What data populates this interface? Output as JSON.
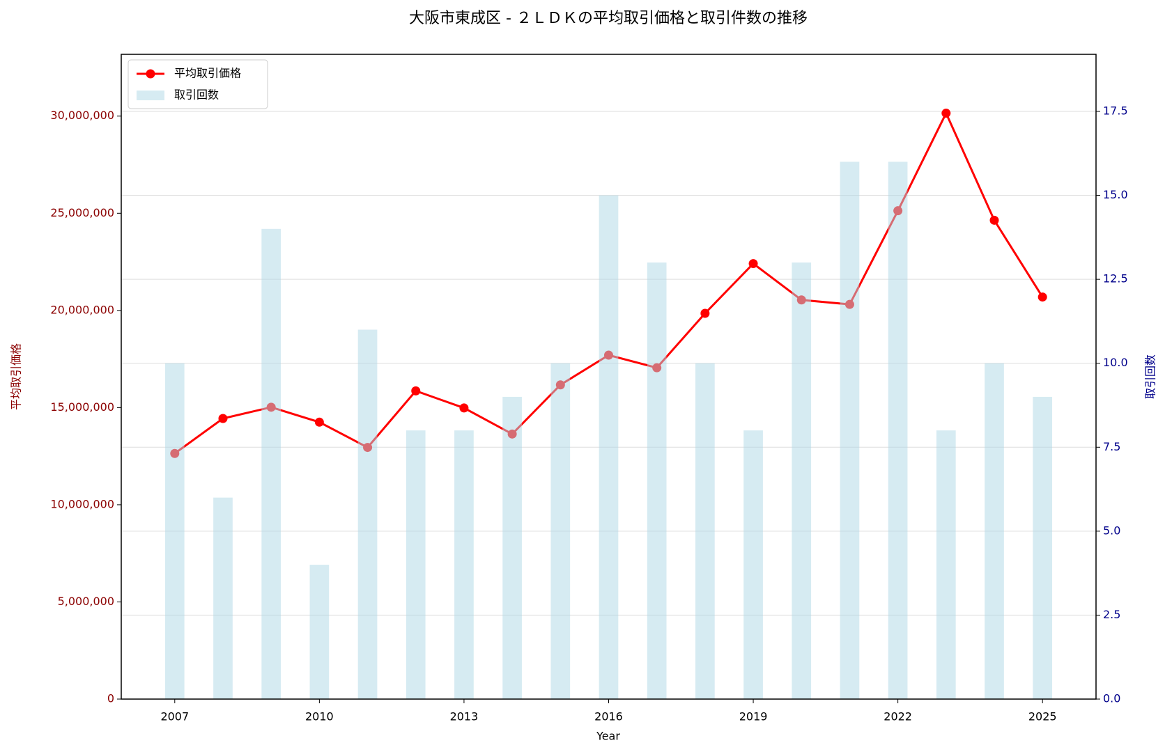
{
  "chart_data": {
    "type": "combo",
    "title": "大阪市東成区 - ２ＬＤＫの平均取引価格と取引件数の推移",
    "x_label": "Year",
    "y_label": "平均取引価格",
    "y2_label": "取引回数",
    "x": [
      2007,
      2008,
      2009,
      2010,
      2011,
      2012,
      2013,
      2014,
      2015,
      2016,
      2017,
      2018,
      2019,
      2020,
      2021,
      2022,
      2023,
      2024,
      2025
    ],
    "series": [
      {
        "name": "平均取引価格",
        "type": "line",
        "color": "#ff0000",
        "values": [
          12640000,
          14440000,
          15020000,
          14250000,
          12950000,
          15860000,
          14980000,
          13640000,
          16170000,
          17700000,
          17050000,
          19850000,
          22410000,
          20540000,
          20310000,
          25130000,
          30150000,
          24640000,
          20690000
        ]
      },
      {
        "name": "取引回数",
        "type": "bar",
        "axis": "y2",
        "color": "#add8e6",
        "values": [
          10,
          6,
          14,
          4,
          11,
          8,
          8,
          9,
          10,
          15,
          13,
          10,
          8,
          13,
          16,
          16,
          8,
          10,
          9
        ]
      }
    ],
    "xlim": [
      2005.89,
      2026.11
    ],
    "xticks": [
      2007,
      2010,
      2013,
      2016,
      2019,
      2022,
      2025
    ],
    "ylim": [
      0,
      33180000
    ],
    "yticks": [
      0,
      {
        "value": 5000000,
        "label": "5,000,000"
      },
      {
        "value": 10000000,
        "label": "10,000,000"
      },
      {
        "value": 15000000,
        "label": "15,000,000"
      },
      {
        "value": 20000000,
        "label": "20,000,000"
      },
      {
        "value": 25000000,
        "label": "25,000,000"
      },
      {
        "value": 30000000,
        "label": "30,000,000"
      }
    ],
    "y2lim": [
      0,
      19.2
    ],
    "y2ticks": [
      {
        "value": 0,
        "label": "0.0"
      },
      2.5,
      {
        "value": 5,
        "label": "5.0"
      },
      7.5,
      {
        "value": 10,
        "label": "10.0"
      },
      12.5,
      {
        "value": 15,
        "label": "15.0"
      },
      17.5
    ],
    "grid": true,
    "legend": "upper left",
    "y_color": "#8b0000",
    "y2_color": "#00008b"
  }
}
